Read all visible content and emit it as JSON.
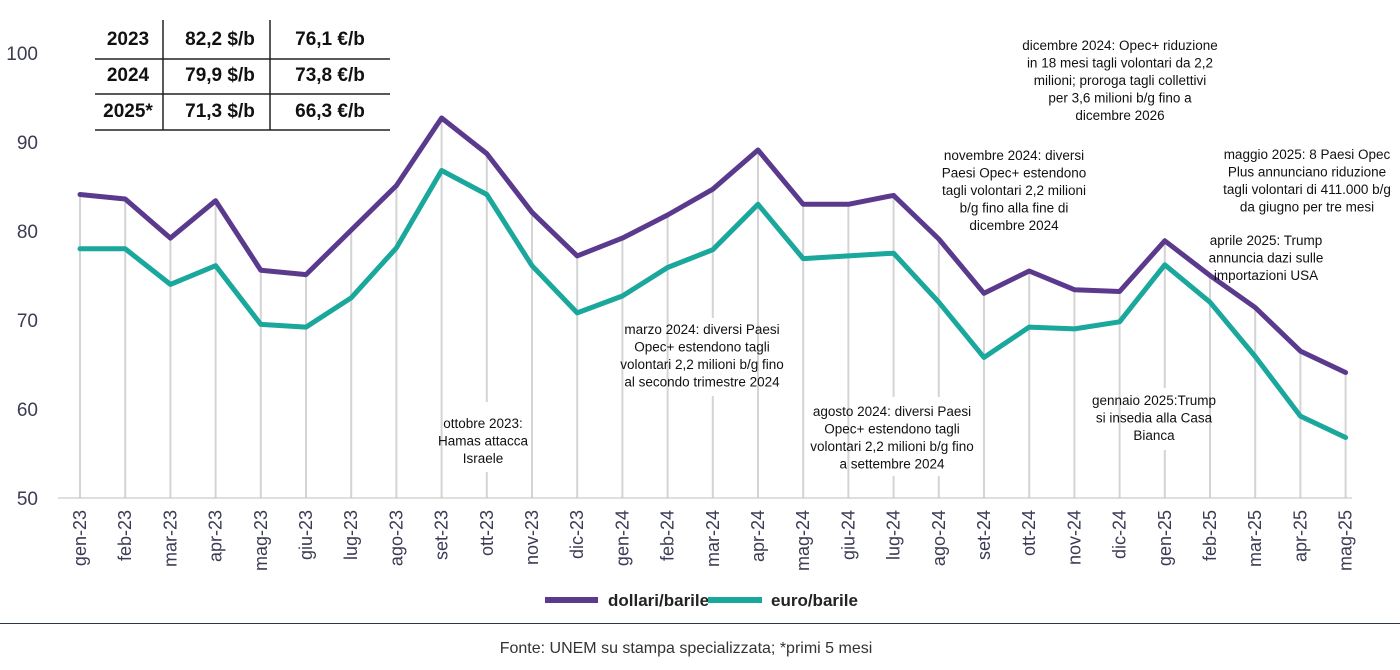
{
  "colors": {
    "usd": "#5b3a8e",
    "eur": "#1aa79c",
    "grid": "#d4d4d4",
    "axis": "#bfbfbf"
  },
  "summary_table": {
    "rows": [
      {
        "year": "2023",
        "usd": "82,2 $/b",
        "eur": "76,1 €/b"
      },
      {
        "year": "2024",
        "usd": "79,9 $/b",
        "eur": "73,8 €/b"
      },
      {
        "year": "2025*",
        "usd": "71,3 $/b",
        "eur": "66,3 €/b"
      }
    ]
  },
  "chart_data": {
    "type": "line",
    "categories": [
      "gen-23",
      "feb-23",
      "mar-23",
      "apr-23",
      "mag-23",
      "giu-23",
      "lug-23",
      "ago-23",
      "set-23",
      "ott-23",
      "nov-23",
      "dic-23",
      "gen-24",
      "feb-24",
      "mar-24",
      "apr-24",
      "mag-24",
      "giu-24",
      "lug-24",
      "ago-24",
      "set-24",
      "ott-24",
      "nov-24",
      "dic-24",
      "gen-25",
      "feb-25",
      "mar-25",
      "apr-25",
      "mag-25"
    ],
    "series": [
      {
        "name": "dollari/barile",
        "color": "#5b3a8e",
        "values": [
          84.1,
          83.6,
          79.2,
          83.4,
          75.6,
          75.1,
          80.1,
          85.1,
          92.7,
          88.7,
          82.1,
          77.2,
          79.2,
          81.8,
          84.7,
          89.1,
          83.0,
          83.0,
          84.0,
          79.1,
          73.0,
          75.5,
          73.4,
          73.2,
          78.9,
          75.0,
          71.4,
          66.5,
          64.1
        ]
      },
      {
        "name": "euro/barile",
        "color": "#1aa79c",
        "values": [
          78.0,
          78.0,
          74.0,
          76.1,
          69.5,
          69.2,
          72.5,
          78.1,
          86.8,
          84.1,
          76.1,
          70.8,
          72.7,
          75.9,
          77.9,
          83.0,
          76.9,
          77.2,
          77.5,
          72.0,
          65.8,
          69.2,
          69.0,
          69.8,
          76.2,
          72.0,
          65.9,
          59.2,
          56.8
        ]
      }
    ],
    "ylim": [
      50,
      100
    ],
    "yticks": [
      "50",
      "60",
      "70",
      "80",
      "90",
      "100"
    ],
    "grid": "vertical lines at categories",
    "legend": "bottom-center"
  },
  "annotations": [
    {
      "lines": [
        "ottobre 2023:",
        "Hamas attacca",
        "Israele"
      ]
    },
    {
      "lines": [
        "marzo 2024:  diversi Paesi",
        "Opec+ estendono tagli",
        "volontari 2,2 milioni b/g fino",
        "al secondo trimestre 2024"
      ]
    },
    {
      "lines": [
        "agosto 2024:  diversi Paesi",
        "Opec+ estendono tagli",
        "volontari 2,2 milioni b/g fino",
        "a settembre 2024"
      ]
    },
    {
      "lines": [
        "novembre 2024:  diversi",
        "Paesi Opec+ estendono",
        "tagli volontari 2,2 milioni",
        "b/g fino alla fine di",
        "dicembre 2024"
      ]
    },
    {
      "lines": [
        "dicembre 2024: Opec+ riduzione",
        "in 18 mesi tagli volontari da 2,2",
        "milioni; proroga tagli collettivi",
        "per 3,6 milioni b/g fino a",
        "dicembre 2026"
      ]
    },
    {
      "lines": [
        "gennaio 2025:Trump",
        "si insedia alla Casa",
        "Bianca"
      ]
    },
    {
      "lines": [
        "aprile 2025: Trump",
        "annuncia dazi sulle",
        "importazioni USA"
      ]
    },
    {
      "lines": [
        "maggio 2025: 8 Paesi Opec",
        "Plus annunciano riduzione",
        "tagli volontari di 411.000 b/g",
        "da giugno per tre mesi"
      ]
    }
  ],
  "source_note": "Fonte: UNEM su stampa specializzata; *primi 5 mesi"
}
